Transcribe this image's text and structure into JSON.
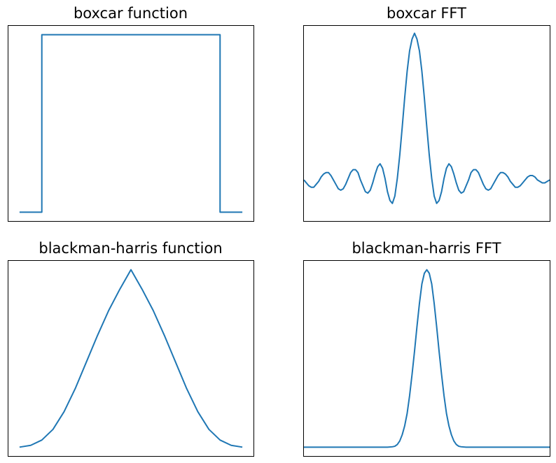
{
  "colors": {
    "line": "#1f77b4",
    "frame": "#000000",
    "background": "#ffffff"
  },
  "chart_data": [
    {
      "type": "line",
      "title": "boxcar function",
      "xlabel": "",
      "ylabel": "",
      "grid": false,
      "axis_ticks": false,
      "xlim": [
        -5,
        105
      ],
      "ylim": [
        -0.05,
        1.05
      ],
      "series": [
        {
          "x": [
            0,
            10,
            10,
            90,
            90,
            100
          ],
          "y": [
            0,
            0,
            1,
            1,
            0,
            0
          ]
        }
      ]
    },
    {
      "type": "line",
      "title": "boxcar FFT",
      "xlabel": "",
      "ylabel": "",
      "grid": false,
      "axis_ticks": false,
      "xlim": [
        -50,
        50
      ],
      "ylim": [
        -0.28,
        1.05
      ],
      "series": [
        {
          "x": [
            -50,
            -49,
            -48,
            -47,
            -46,
            -45,
            -44,
            -43,
            -42,
            -41,
            -40,
            -39,
            -38,
            -37,
            -36,
            -35,
            -34,
            -33,
            -32,
            -31,
            -30,
            -29,
            -28,
            -27,
            -26,
            -25,
            -24,
            -23,
            -22,
            -21,
            -20,
            -19,
            -18,
            -17,
            -16,
            -15,
            -14,
            -13,
            -12,
            -11,
            -10,
            -9,
            -8,
            -7,
            -6,
            -5,
            -4,
            -3,
            -2,
            -1,
            0,
            1,
            2,
            3,
            4,
            5,
            6,
            7,
            8,
            9,
            10,
            11,
            12,
            13,
            14,
            15,
            16,
            17,
            18,
            19,
            20,
            21,
            22,
            23,
            24,
            25,
            26,
            27,
            28,
            29,
            30,
            31,
            32,
            33,
            34,
            35,
            36,
            37,
            38,
            39,
            40,
            41,
            42,
            43,
            44,
            45,
            46,
            47,
            48,
            49,
            50
          ],
          "y": [
            0.0,
            -0.02,
            -0.04,
            -0.05,
            -0.05,
            -0.03,
            -0.01,
            0.02,
            0.04,
            0.05,
            0.05,
            0.03,
            0.0,
            -0.03,
            -0.06,
            -0.07,
            -0.06,
            -0.03,
            0.01,
            0.05,
            0.07,
            0.07,
            0.05,
            0.0,
            -0.04,
            -0.08,
            -0.09,
            -0.07,
            -0.02,
            0.04,
            0.09,
            0.11,
            0.08,
            0.01,
            -0.08,
            -0.14,
            -0.16,
            -0.11,
            0.01,
            0.17,
            0.36,
            0.56,
            0.74,
            0.88,
            0.96,
            1.0,
            0.96,
            0.88,
            0.74,
            0.56,
            0.36,
            0.17,
            0.01,
            -0.11,
            -0.16,
            -0.14,
            -0.08,
            0.01,
            0.08,
            0.11,
            0.09,
            0.04,
            -0.02,
            -0.07,
            -0.09,
            -0.08,
            -0.04,
            0.0,
            0.05,
            0.07,
            0.07,
            0.05,
            0.01,
            -0.03,
            -0.06,
            -0.07,
            -0.06,
            -0.03,
            0.0,
            0.03,
            0.05,
            0.05,
            0.04,
            0.02,
            -0.01,
            -0.03,
            -0.05,
            -0.05,
            -0.04,
            -0.02,
            0.0,
            0.02,
            0.03,
            0.03,
            0.02,
            0.0,
            -0.01,
            -0.02,
            -0.02,
            -0.01,
            0.0
          ]
        }
      ]
    },
    {
      "type": "line",
      "title": "blackman-harris function",
      "xlabel": "",
      "ylabel": "",
      "grid": false,
      "axis_ticks": false,
      "xlim": [
        -5,
        105
      ],
      "ylim": [
        -0.05,
        1.05
      ],
      "series": [
        {
          "x": [
            0,
            5,
            10,
            15,
            20,
            25,
            30,
            35,
            40,
            45,
            50,
            55,
            60,
            65,
            70,
            75,
            80,
            85,
            90,
            95,
            100
          ],
          "y": [
            0.0,
            0.01,
            0.04,
            0.1,
            0.2,
            0.33,
            0.48,
            0.63,
            0.77,
            0.89,
            1.0,
            0.89,
            0.77,
            0.63,
            0.48,
            0.33,
            0.2,
            0.1,
            0.04,
            0.01,
            0.0
          ]
        }
      ]
    },
    {
      "type": "line",
      "title": "blackman-harris FFT",
      "xlabel": "",
      "ylabel": "",
      "grid": false,
      "axis_ticks": false,
      "xlim": [
        -50,
        50
      ],
      "ylim": [
        -0.05,
        1.05
      ],
      "series": [
        {
          "x": [
            -50,
            -40,
            -30,
            -20,
            -16,
            -14,
            -13,
            -12,
            -11,
            -10,
            -9,
            -8,
            -7,
            -6,
            -5,
            -4,
            -3,
            -2,
            -1,
            0,
            1,
            2,
            3,
            4,
            5,
            6,
            7,
            8,
            9,
            10,
            11,
            12,
            13,
            14,
            16,
            20,
            30,
            40,
            50
          ],
          "y": [
            0.0,
            0.0,
            0.0,
            0.0,
            0.0,
            0.002,
            0.005,
            0.015,
            0.035,
            0.07,
            0.12,
            0.19,
            0.29,
            0.41,
            0.54,
            0.68,
            0.81,
            0.92,
            0.98,
            1.0,
            0.98,
            0.92,
            0.81,
            0.68,
            0.54,
            0.41,
            0.29,
            0.19,
            0.12,
            0.07,
            0.035,
            0.015,
            0.005,
            0.002,
            0.0,
            0.0,
            0.0,
            0.0,
            0.0
          ]
        }
      ]
    }
  ]
}
